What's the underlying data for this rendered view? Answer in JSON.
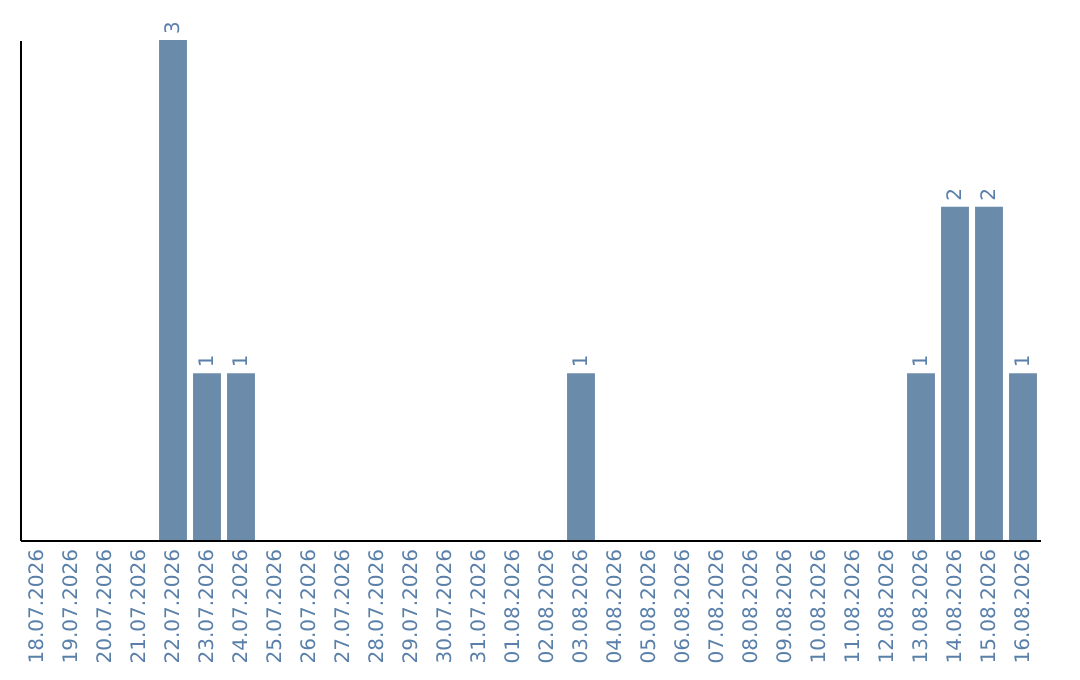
{
  "chart_data": {
    "type": "bar",
    "categories": [
      "18.07.2026",
      "19.07.2026",
      "20.07.2026",
      "21.07.2026",
      "22.07.2026",
      "23.07.2026",
      "24.07.2026",
      "25.07.2026",
      "26.07.2026",
      "27.07.2026",
      "28.07.2026",
      "29.07.2026",
      "30.07.2026",
      "31.07.2026",
      "01.08.2026",
      "02.08.2026",
      "03.08.2026",
      "04.08.2026",
      "05.08.2026",
      "06.08.2026",
      "07.08.2026",
      "08.08.2026",
      "09.08.2026",
      "10.08.2026",
      "11.08.2026",
      "12.08.2026",
      "13.08.2026",
      "14.08.2026",
      "15.08.2026",
      "16.08.2026"
    ],
    "values": [
      0,
      0,
      0,
      0,
      3,
      1,
      1,
      0,
      0,
      0,
      0,
      0,
      0,
      0,
      0,
      0,
      1,
      0,
      0,
      0,
      0,
      0,
      0,
      0,
      0,
      0,
      1,
      2,
      2,
      1
    ],
    "value_labels": [
      null,
      null,
      null,
      null,
      "3",
      "1",
      "1",
      null,
      null,
      null,
      null,
      null,
      null,
      null,
      null,
      null,
      "1",
      null,
      null,
      null,
      null,
      null,
      null,
      null,
      null,
      null,
      "1",
      "2",
      "2",
      "1"
    ],
    "color": "#6b8bab",
    "tick_labels": "x",
    "grid": false
  }
}
